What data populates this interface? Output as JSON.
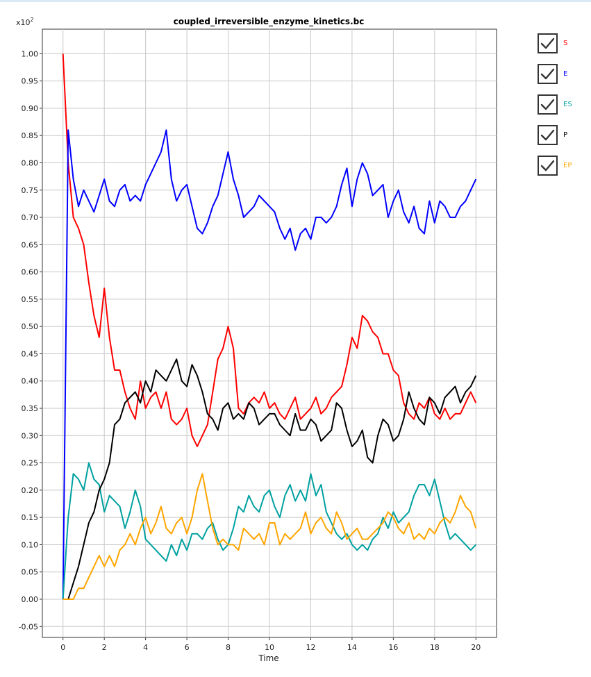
{
  "chart_data": {
    "type": "line",
    "title": "coupled_irreversible_enzyme_kinetics.bc",
    "xlabel": "Time",
    "ylabel": "",
    "y_multiplier": "x10",
    "y_multiplier_exp": "2",
    "xlim": [
      -1,
      21
    ],
    "ylim": [
      -0.07,
      1.045
    ],
    "grid": true,
    "legend_position": "right",
    "x_ticks": [
      "0",
      "2",
      "4",
      "6",
      "8",
      "10",
      "12",
      "14",
      "16",
      "18",
      "20"
    ],
    "y_ticks": [
      "-0.05",
      "0.00",
      "0.05",
      "0.10",
      "0.15",
      "0.20",
      "0.25",
      "0.30",
      "0.35",
      "0.40",
      "0.45",
      "0.50",
      "0.55",
      "0.60",
      "0.65",
      "0.70",
      "0.75",
      "0.80",
      "0.85",
      "0.90",
      "0.95",
      "1.00"
    ],
    "x": [
      0,
      0.25,
      0.5,
      0.75,
      1,
      1.25,
      1.5,
      1.75,
      2,
      2.25,
      2.5,
      2.75,
      3,
      3.25,
      3.5,
      3.75,
      4,
      4.25,
      4.5,
      4.75,
      5,
      5.25,
      5.5,
      5.75,
      6,
      6.25,
      6.5,
      6.75,
      7,
      7.25,
      7.5,
      7.75,
      8,
      8.25,
      8.5,
      8.75,
      9,
      9.25,
      9.5,
      9.75,
      10,
      10.25,
      10.5,
      10.75,
      11,
      11.25,
      11.5,
      11.75,
      12,
      12.25,
      12.5,
      12.75,
      13,
      13.25,
      13.5,
      13.75,
      14,
      14.25,
      14.5,
      14.75,
      15,
      15.25,
      15.5,
      15.75,
      16,
      16.25,
      16.5,
      16.75,
      17,
      17.25,
      17.5,
      17.75,
      18,
      18.25,
      18.5,
      18.75,
      19,
      19.25,
      19.5,
      19.75,
      20
    ],
    "series": [
      {
        "name": "S",
        "color": "#ff0000",
        "values": [
          1.0,
          0.8,
          0.7,
          0.68,
          0.65,
          0.58,
          0.52,
          0.48,
          0.57,
          0.48,
          0.42,
          0.42,
          0.38,
          0.35,
          0.33,
          0.4,
          0.35,
          0.37,
          0.38,
          0.35,
          0.38,
          0.33,
          0.32,
          0.33,
          0.35,
          0.3,
          0.28,
          0.3,
          0.32,
          0.38,
          0.44,
          0.46,
          0.5,
          0.46,
          0.35,
          0.34,
          0.36,
          0.37,
          0.36,
          0.38,
          0.35,
          0.36,
          0.34,
          0.33,
          0.35,
          0.37,
          0.33,
          0.34,
          0.35,
          0.37,
          0.34,
          0.35,
          0.37,
          0.38,
          0.39,
          0.43,
          0.48,
          0.46,
          0.52,
          0.51,
          0.49,
          0.48,
          0.45,
          0.45,
          0.42,
          0.41,
          0.36,
          0.34,
          0.33,
          0.36,
          0.35,
          0.37,
          0.34,
          0.33,
          0.35,
          0.33,
          0.34,
          0.34,
          0.36,
          0.38,
          0.36
        ]
      },
      {
        "name": "E",
        "color": "#0000ff",
        "values": [
          0.0,
          0.86,
          0.77,
          0.72,
          0.75,
          0.73,
          0.71,
          0.74,
          0.77,
          0.73,
          0.72,
          0.75,
          0.76,
          0.73,
          0.74,
          0.73,
          0.76,
          0.78,
          0.8,
          0.82,
          0.86,
          0.77,
          0.73,
          0.75,
          0.76,
          0.72,
          0.68,
          0.67,
          0.69,
          0.72,
          0.74,
          0.78,
          0.82,
          0.77,
          0.74,
          0.7,
          0.71,
          0.72,
          0.74,
          0.73,
          0.72,
          0.71,
          0.68,
          0.66,
          0.68,
          0.64,
          0.67,
          0.68,
          0.66,
          0.7,
          0.7,
          0.69,
          0.7,
          0.72,
          0.76,
          0.79,
          0.72,
          0.77,
          0.8,
          0.78,
          0.74,
          0.75,
          0.76,
          0.7,
          0.73,
          0.75,
          0.71,
          0.69,
          0.72,
          0.68,
          0.67,
          0.73,
          0.69,
          0.73,
          0.72,
          0.7,
          0.7,
          0.72,
          0.73,
          0.75,
          0.77
        ]
      },
      {
        "name": "ES",
        "color": "#00a0a0",
        "values": [
          0.0,
          0.15,
          0.23,
          0.22,
          0.2,
          0.25,
          0.22,
          0.21,
          0.16,
          0.19,
          0.18,
          0.17,
          0.13,
          0.16,
          0.2,
          0.17,
          0.11,
          0.1,
          0.09,
          0.08,
          0.07,
          0.1,
          0.08,
          0.11,
          0.09,
          0.12,
          0.12,
          0.11,
          0.13,
          0.14,
          0.11,
          0.09,
          0.1,
          0.13,
          0.17,
          0.16,
          0.19,
          0.17,
          0.16,
          0.19,
          0.2,
          0.17,
          0.15,
          0.19,
          0.21,
          0.18,
          0.2,
          0.18,
          0.23,
          0.19,
          0.21,
          0.16,
          0.14,
          0.12,
          0.11,
          0.12,
          0.1,
          0.09,
          0.1,
          0.09,
          0.11,
          0.12,
          0.15,
          0.13,
          0.16,
          0.14,
          0.15,
          0.16,
          0.19,
          0.21,
          0.21,
          0.19,
          0.22,
          0.18,
          0.14,
          0.11,
          0.12,
          0.11,
          0.1,
          0.09,
          0.1
        ]
      },
      {
        "name": "P",
        "color": "#000000",
        "values": [
          0.0,
          0.0,
          0.03,
          0.06,
          0.1,
          0.14,
          0.16,
          0.2,
          0.22,
          0.25,
          0.32,
          0.33,
          0.36,
          0.37,
          0.38,
          0.36,
          0.4,
          0.38,
          0.42,
          0.41,
          0.4,
          0.42,
          0.44,
          0.4,
          0.39,
          0.43,
          0.41,
          0.38,
          0.34,
          0.33,
          0.31,
          0.35,
          0.36,
          0.33,
          0.34,
          0.33,
          0.36,
          0.35,
          0.32,
          0.33,
          0.34,
          0.34,
          0.32,
          0.31,
          0.3,
          0.34,
          0.31,
          0.31,
          0.33,
          0.32,
          0.29,
          0.3,
          0.31,
          0.36,
          0.35,
          0.31,
          0.28,
          0.29,
          0.31,
          0.26,
          0.25,
          0.3,
          0.33,
          0.32,
          0.29,
          0.3,
          0.33,
          0.38,
          0.35,
          0.33,
          0.32,
          0.37,
          0.36,
          0.34,
          0.37,
          0.38,
          0.39,
          0.36,
          0.38,
          0.39,
          0.41
        ]
      },
      {
        "name": "EP",
        "color": "#ffa500",
        "values": [
          0.0,
          0.0,
          0.0,
          0.02,
          0.02,
          0.04,
          0.06,
          0.08,
          0.06,
          0.08,
          0.06,
          0.09,
          0.1,
          0.12,
          0.1,
          0.13,
          0.15,
          0.12,
          0.14,
          0.17,
          0.13,
          0.12,
          0.14,
          0.15,
          0.12,
          0.15,
          0.2,
          0.23,
          0.18,
          0.13,
          0.1,
          0.11,
          0.1,
          0.1,
          0.09,
          0.13,
          0.12,
          0.11,
          0.12,
          0.1,
          0.14,
          0.14,
          0.1,
          0.12,
          0.11,
          0.12,
          0.13,
          0.16,
          0.12,
          0.14,
          0.15,
          0.13,
          0.12,
          0.16,
          0.14,
          0.11,
          0.12,
          0.13,
          0.11,
          0.11,
          0.12,
          0.13,
          0.14,
          0.16,
          0.15,
          0.13,
          0.12,
          0.14,
          0.11,
          0.12,
          0.11,
          0.13,
          0.12,
          0.14,
          0.15,
          0.14,
          0.16,
          0.19,
          0.17,
          0.16,
          0.13
        ]
      }
    ]
  },
  "legend": {
    "items": [
      {
        "label": "S",
        "color": "#ff0000"
      },
      {
        "label": "E",
        "color": "#0000ff"
      },
      {
        "label": "ES",
        "color": "#00a0a0"
      },
      {
        "label": "P",
        "color": "#000000"
      },
      {
        "label": "EP",
        "color": "#ffa500"
      }
    ]
  }
}
